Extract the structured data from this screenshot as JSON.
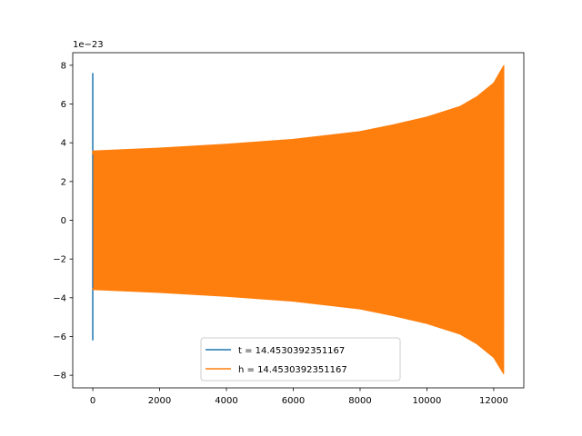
{
  "chart_data": {
    "type": "line",
    "title": "",
    "xlabel": "",
    "ylabel": "",
    "offset_text": "1e−23",
    "xlim": [
      -600,
      12900
    ],
    "ylim": [
      -8.65,
      8.65
    ],
    "x_ticks": [
      0,
      2000,
      4000,
      6000,
      8000,
      10000,
      12000
    ],
    "x_tick_labels": [
      "0",
      "2000",
      "4000",
      "6000",
      "8000",
      "10000",
      "12000"
    ],
    "y_ticks": [
      -8,
      -6,
      -4,
      -2,
      0,
      2,
      4,
      6,
      8
    ],
    "y_tick_labels": [
      "−8",
      "−6",
      "−4",
      "−2",
      "0",
      "2",
      "4",
      "6",
      "8"
    ],
    "grid": false,
    "legend_position": "bottom-center",
    "series": [
      {
        "name": "t = 14.4530392351167",
        "color": "#1f77b4",
        "description_points": {
          "x": [
            0,
            0,
            0,
            0,
            0
          ],
          "y": [
            0,
            7.6,
            -6.2,
            0.3,
            0
          ]
        }
      },
      {
        "name": "h = 14.4530392351167",
        "color": "#ff7f0e",
        "x_range": [
          0,
          12300
        ],
        "envelope_x": [
          0,
          2000,
          4000,
          6000,
          8000,
          9000,
          10000,
          11000,
          11500,
          12000,
          12300
        ],
        "envelope_upper": [
          3.6,
          3.75,
          3.95,
          4.2,
          4.6,
          4.95,
          5.35,
          5.9,
          6.4,
          7.1,
          8.0
        ],
        "envelope_lower": [
          -3.6,
          -3.75,
          -3.95,
          -4.2,
          -4.6,
          -4.95,
          -5.35,
          -5.9,
          -6.4,
          -7.1,
          -7.95
        ]
      }
    ]
  }
}
